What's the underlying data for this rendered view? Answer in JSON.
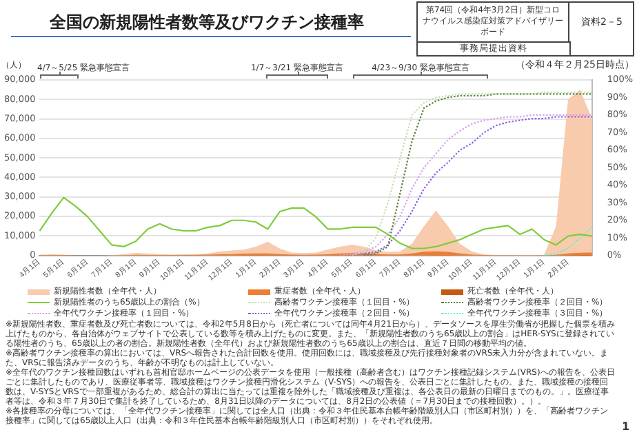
{
  "chart_data": {
    "type": "line",
    "title": "全国の新規陽性者数等及びワクチン接種率",
    "subtitle": "（令和４年２月25日時点）",
    "ylabel": "（人）",
    "annotations": [
      "第74回（令和4年3月2日）新型コロナウイルス感染症対策アドバイザリーボード",
      "資料2－5",
      "事務局提出資料",
      "4/7～5/25 緊急事態宣言",
      "1/7～3/21 緊急事態宣言",
      "4/23～9/30 緊急事態宣言",
      "※新規陽性者数、重症者数及び死亡者数については、令和2年5月8日から（死亡者については同年4月21日から）、データソースを厚生労働省が把握した個票を積み上げたものから、各自治体がウェブサイトで公表している数等を積み上げたものに変更。また、「新規陽性者数のうち65歳以上の割合」はHER-SYSに登録されている陽性者のうち、65歳以上の者の割合。新規陽性者数（全年代）および新規陽性者数のうち65歳以上の割合は、直近７日間の移動平均の値。",
      "※高齢者ワクチン接種率の算出においては、VRSへ報告された合計回数を使用。使用回数には、職域接種及び先行接種対象者のVRS未入力分が含まれていない。また、VRSに報告済みデータのうち、年齢が不明なものは計上していない。",
      "※全年代のワクチン接種回数はいずれも首相官邸ホームページの公表データを使用（一般接種（高齢者含む）はワクチン接種記録システム(VRS)への報告を、公表日ごとに集計したものであり、医療従事者等、職域接種はワクチン接種円滑化システム（V-SYS）への報告を、公表日ごとに集計したもの。また、職域接種の接種回数は、V-SYSとVRSで一部重複があるため、総合計の算出に当たっては重複を除外した「職域接種及び重複は、各公表日の最新の日曜日までのもの。」。医療従事者等は、令和３年７月30日で集計を終了しているため、8月31日以降のデータについては、8月2日の公表値（＝7月30日までの接種回数）。）。",
      "※各接種率の分母については、「全年代ワクチン接種率」に関しては全人口（出典：令和３年住民基本台帳年齢階級別人口（市区町村別））を、「高齢者ワクチン接種率」に関しては65歳以上人口（出典：令和３年住民基本台帳年齢階級別人口（市区町村別））をそれぞれ使用。",
      "1"
    ],
    "categories": [
      "4月1日",
      null,
      "5月1日",
      null,
      "6月1日",
      null,
      "7月1日",
      null,
      "8月1日",
      null,
      "9月1日",
      null,
      "10月1日",
      null,
      "11月1日",
      null,
      "12月1日",
      null,
      "1月1日",
      null,
      "2月1日",
      null,
      "3月1日",
      null,
      "4月1日",
      null,
      "5月1日",
      null,
      "6月1日",
      null,
      "7月1日",
      null,
      "8月1日",
      null,
      "9月1日",
      null,
      "10月1日",
      null,
      "11月1日",
      null,
      "12月1日",
      null,
      "1月1日",
      null,
      "2月1日",
      null,
      null
    ],
    "series": [
      {
        "name": "新規陽性者数（全年代・人）",
        "type": "area",
        "color": "#f8cbad",
        "values": [
          500,
          400,
          200,
          0,
          0,
          0,
          200,
          600,
          1300,
          1000,
          600,
          500,
          600,
          500,
          1000,
          2000,
          2500,
          3000,
          4500,
          7000,
          3500,
          1500,
          1200,
          1500,
          3000,
          4500,
          5500,
          4500,
          2500,
          1800,
          2000,
          6000,
          15000,
          23000,
          15000,
          6000,
          2000,
          500,
          200,
          200,
          200,
          200,
          200,
          15000,
          80000,
          85000,
          70000
        ]
      },
      {
        "name": "重症者数（全年代・人）",
        "type": "area",
        "color": "#ed7d31",
        "values": [
          100,
          300,
          300,
          100,
          0,
          0,
          0,
          100,
          300,
          200,
          200,
          200,
          200,
          300,
          400,
          600,
          700,
          900,
          1000,
          1000,
          700,
          400,
          300,
          400,
          600,
          1000,
          1300,
          1100,
          700,
          500,
          500,
          1000,
          1900,
          2100,
          1800,
          1000,
          400,
          200,
          100,
          100,
          0,
          0,
          100,
          300,
          1000,
          1400,
          1500
        ]
      },
      {
        "name": "死亡者数（全年代・人）",
        "type": "area",
        "color": "#c55a11",
        "values": [
          0,
          0,
          0,
          0,
          0,
          0,
          0,
          0,
          0,
          0,
          0,
          0,
          0,
          0,
          0,
          0,
          0,
          100,
          100,
          100,
          100,
          100,
          0,
          0,
          0,
          100,
          100,
          100,
          100,
          0,
          0,
          0,
          0,
          100,
          100,
          0,
          0,
          0,
          0,
          0,
          0,
          0,
          0,
          0,
          100,
          200,
          200
        ]
      },
      {
        "name": "新規陽性者のうち65歳以上の割合（%）",
        "axis": "y2",
        "color": "#7dcc3c",
        "line_style": "solid",
        "values": [
          14,
          24,
          33,
          28,
          22,
          14,
          6,
          5,
          8,
          15,
          18,
          15,
          14,
          14,
          16,
          17,
          20,
          20,
          19,
          15,
          25,
          27,
          27,
          22,
          15,
          15,
          16,
          16,
          16,
          12,
          7,
          4,
          4,
          5,
          7,
          9,
          12,
          15,
          16,
          17,
          12,
          15,
          9,
          6,
          11,
          12,
          11
        ]
      },
      {
        "name": "高齢者ワクチン接種率（１回目・%）",
        "axis": "y2",
        "color": "#c5e0b4",
        "line_style": "dotted",
        "values": [
          null,
          null,
          null,
          null,
          null,
          null,
          null,
          null,
          null,
          null,
          null,
          null,
          null,
          null,
          null,
          null,
          null,
          null,
          null,
          null,
          null,
          null,
          null,
          null,
          null,
          null,
          0,
          2,
          10,
          30,
          55,
          80,
          87,
          90,
          91,
          92,
          92,
          92,
          92,
          92,
          92,
          92,
          93,
          93,
          93,
          93,
          93
        ]
      },
      {
        "name": "高齢者ワクチン接種率（２回目・%）",
        "axis": "y2",
        "color": "#548235",
        "line_style": "dotted",
        "values": [
          null,
          null,
          null,
          null,
          null,
          null,
          null,
          null,
          null,
          null,
          null,
          null,
          null,
          null,
          null,
          null,
          null,
          null,
          null,
          null,
          null,
          null,
          null,
          null,
          null,
          null,
          null,
          0,
          1,
          5,
          35,
          65,
          84,
          88,
          90,
          91,
          91,
          91,
          92,
          92,
          92,
          92,
          92,
          92,
          92,
          92,
          92
        ]
      },
      {
        "name": "全年代ワクチン接種率（１回目・%）",
        "axis": "y2",
        "color": "#d9a0f0",
        "line_style": "dotted",
        "values": [
          null,
          null,
          null,
          null,
          null,
          null,
          null,
          null,
          null,
          null,
          null,
          null,
          null,
          null,
          null,
          null,
          null,
          null,
          null,
          null,
          null,
          null,
          null,
          null,
          null,
          0,
          1,
          2,
          5,
          12,
          22,
          38,
          50,
          58,
          66,
          71,
          75,
          77,
          78,
          79,
          79,
          80,
          80,
          80,
          80,
          80,
          80
        ]
      },
      {
        "name": "全年代ワクチン接種率（２回目・%）",
        "axis": "y2",
        "color": "#8e5ce8",
        "line_style": "dotted",
        "values": [
          null,
          null,
          null,
          null,
          null,
          null,
          null,
          null,
          null,
          null,
          null,
          null,
          null,
          null,
          null,
          null,
          null,
          null,
          null,
          null,
          null,
          null,
          null,
          null,
          null,
          null,
          0,
          1,
          2,
          6,
          14,
          25,
          38,
          47,
          53,
          60,
          64,
          70,
          74,
          76,
          77,
          78,
          78,
          79,
          79,
          79,
          79
        ]
      },
      {
        "name": "全年代ワクチン接種率（３回目・%）",
        "axis": "y2",
        "color": "#66f0d0",
        "line_style": "dotted",
        "values": [
          null,
          null,
          null,
          null,
          null,
          null,
          null,
          null,
          null,
          null,
          null,
          null,
          null,
          null,
          null,
          null,
          null,
          null,
          null,
          null,
          null,
          null,
          null,
          null,
          null,
          null,
          null,
          null,
          null,
          null,
          null,
          null,
          null,
          null,
          null,
          null,
          null,
          null,
          null,
          null,
          null,
          null,
          0,
          1,
          4,
          10,
          16
        ]
      }
    ],
    "ylim": [
      0,
      90000
    ],
    "yticks": [
      {
        "value": 0,
        "label": "0"
      },
      {
        "value": 10000,
        "label": "10,000"
      },
      {
        "value": 20000,
        "label": "20,000"
      },
      {
        "value": 30000,
        "label": "30,000"
      },
      {
        "value": 40000,
        "label": "40,000"
      },
      {
        "value": 50000,
        "label": "50,000"
      },
      {
        "value": 60000,
        "label": "60,000"
      },
      {
        "value": 70000,
        "label": "70,000"
      },
      {
        "value": 80000,
        "label": "80,000"
      },
      {
        "value": 90000,
        "label": "90,000"
      }
    ],
    "y2lim": [
      0,
      100
    ],
    "y2ticks": [
      {
        "value": 0,
        "label": "0%"
      },
      {
        "value": 10,
        "label": "10%"
      },
      {
        "value": 20,
        "label": "20%"
      },
      {
        "value": 30,
        "label": "30%"
      },
      {
        "value": 40,
        "label": "40%"
      },
      {
        "value": 50,
        "label": "50%"
      },
      {
        "value": 60,
        "label": "60%"
      },
      {
        "value": 70,
        "label": "70%"
      },
      {
        "value": 80,
        "label": "80%"
      },
      {
        "value": 90,
        "label": "90%"
      },
      {
        "value": 100,
        "label": "100%"
      }
    ],
    "grid": "y",
    "legend": "bottom",
    "marker": "none"
  }
}
